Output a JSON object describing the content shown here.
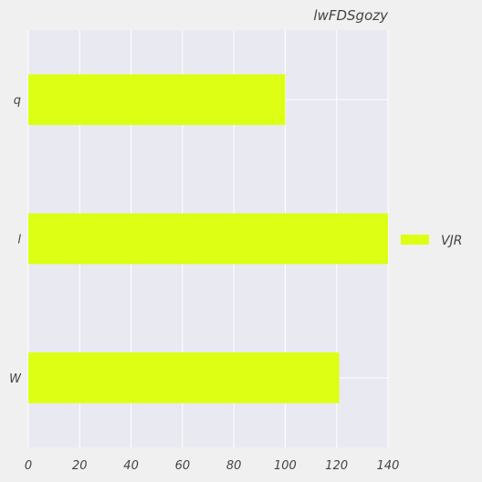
{
  "chart_data": {
    "type": "bar",
    "orientation": "horizontal",
    "title": "lwFDSgozy",
    "xlabel": "",
    "ylabel": "",
    "categories": [
      "q",
      "l",
      "W"
    ],
    "series": [
      {
        "name": "VJR",
        "values": [
          100,
          140,
          121
        ]
      }
    ],
    "xlim": [
      0,
      140
    ],
    "xticks": [
      0,
      20,
      40,
      60,
      80,
      100,
      120,
      140
    ],
    "grid": true,
    "legend_position": "right",
    "colors": {
      "bar": "#dcff14",
      "plot_background": "#e9e9f1",
      "figure_background": "#f0f0f0",
      "grid": "#ffffff",
      "text": "#444444"
    }
  }
}
